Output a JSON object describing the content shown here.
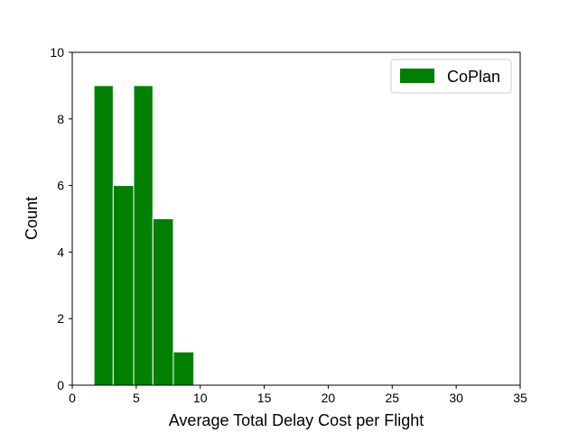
{
  "chart_data": {
    "type": "bar",
    "xlabel": "Average Total Delay Cost per Flight",
    "ylabel": "Count",
    "xlim": [
      0,
      35
    ],
    "ylim": [
      0,
      10
    ],
    "xticks": [
      "0",
      "5",
      "10",
      "15",
      "20",
      "25",
      "30",
      "35"
    ],
    "yticks": [
      "0",
      "2",
      "4",
      "6",
      "8",
      "10"
    ],
    "grid": false,
    "legend_position": "top-right",
    "bins": [
      {
        "start": 1.7,
        "end": 3.2,
        "count": 9
      },
      {
        "start": 3.2,
        "end": 4.8,
        "count": 6
      },
      {
        "start": 4.8,
        "end": 6.3,
        "count": 9
      },
      {
        "start": 6.3,
        "end": 7.9,
        "count": 5
      },
      {
        "start": 7.9,
        "end": 9.5,
        "count": 1
      }
    ],
    "series": [
      {
        "name": "CoPlan",
        "color": "#008000"
      }
    ]
  }
}
